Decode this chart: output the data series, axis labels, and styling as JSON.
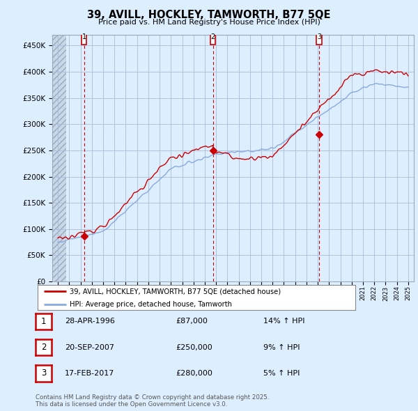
{
  "title": "39, AVILL, HOCKLEY, TAMWORTH, B77 5QE",
  "subtitle": "Price paid vs. HM Land Registry's House Price Index (HPI)",
  "ylabel_ticks": [
    "£0",
    "£50K",
    "£100K",
    "£150K",
    "£200K",
    "£250K",
    "£300K",
    "£350K",
    "£400K",
    "£450K"
  ],
  "ytick_values": [
    0,
    50000,
    100000,
    150000,
    200000,
    250000,
    300000,
    350000,
    400000,
    450000
  ],
  "ylim": [
    0,
    470000
  ],
  "xlim_start": 1993.5,
  "xlim_end": 2025.5,
  "hatch_end": 1994.75,
  "sale_dates": [
    1996.32,
    2007.72,
    2017.12
  ],
  "sale_prices": [
    87000,
    250000,
    280000
  ],
  "sale_labels": [
    "1",
    "2",
    "3"
  ],
  "legend_label_red": "39, AVILL, HOCKLEY, TAMWORTH, B77 5QE (detached house)",
  "legend_label_blue": "HPI: Average price, detached house, Tamworth",
  "table_rows": [
    {
      "num": "1",
      "date": "28-APR-1996",
      "price": "£87,000",
      "hpi": "14% ↑ HPI"
    },
    {
      "num": "2",
      "date": "20-SEP-2007",
      "price": "£250,000",
      "hpi": "9% ↑ HPI"
    },
    {
      "num": "3",
      "date": "17-FEB-2017",
      "price": "£280,000",
      "hpi": "5% ↑ HPI"
    }
  ],
  "footnote": "Contains HM Land Registry data © Crown copyright and database right 2025.\nThis data is licensed under the Open Government Licence v3.0.",
  "red_color": "#cc0000",
  "blue_color": "#88aadd",
  "bg_color": "#ddeeff",
  "plot_bg": "#ddeeff",
  "grid_color": "#aabbdd",
  "hatch_color": "#bbccdd"
}
